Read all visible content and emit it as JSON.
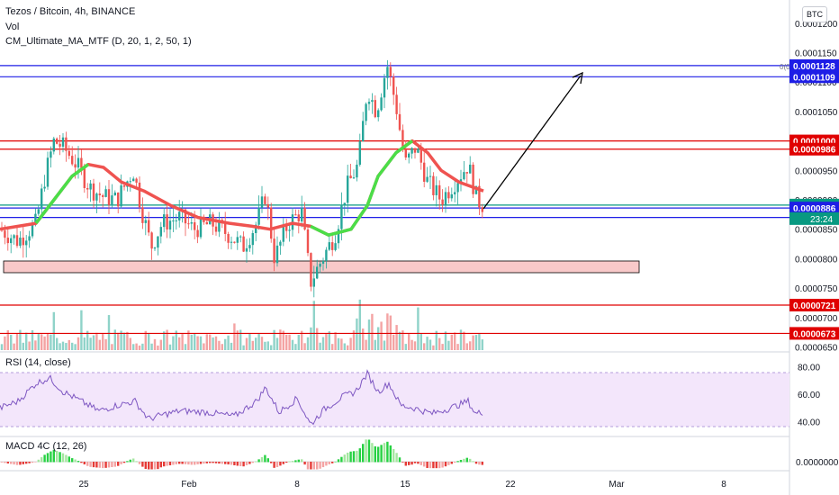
{
  "header": {
    "symbol": "Tezos / Bitcoin, 4h, BINANCE",
    "volume_label": "Vol",
    "ma_indicator": "CM_Ultimate_MA_MTF (D, 20, 1, 2, 50, 1)",
    "currency_button": "BTC"
  },
  "price_axis": {
    "ticks": [
      "0.0001200",
      "0.0001150",
      "0.0001100",
      "0.0001050",
      "0.0001000",
      "0.0000950",
      "0.0000900",
      "0.0000850",
      "0.0000800",
      "0.0000750",
      "0.0000700",
      "0.0000650"
    ],
    "levels": [
      {
        "value": "0.0001128",
        "color": "#1e1ee6",
        "tag": "0(0)"
      },
      {
        "value": "0.0001109",
        "color": "#1e1ee6"
      },
      {
        "value": "0.0001000",
        "color": "#e00000"
      },
      {
        "value": "0.0000986",
        "color": "#e00000"
      },
      {
        "value": "0.0000891",
        "color": "#089981"
      },
      {
        "value": "0.0000886",
        "color": "#1e1ee6"
      },
      {
        "value": "0.0000870",
        "color": "#1e1ee6"
      },
      {
        "value": "0.0000721",
        "color": "#e00000"
      },
      {
        "value": "0.0000673",
        "color": "#e00000"
      }
    ],
    "current_price": "0.0000891",
    "countdown": "23:24"
  },
  "rsi": {
    "label": "RSI (14, close)",
    "ticks": [
      "80.00",
      "60.00",
      "40.00"
    ]
  },
  "macd": {
    "label": "MACD 4C (12, 26)",
    "ticks": [
      "0.0000000"
    ]
  },
  "time_axis": {
    "ticks": [
      "25",
      "Feb",
      "8",
      "15",
      "22",
      "Mar",
      "8"
    ]
  },
  "chart_data": {
    "type": "candlestick",
    "subtitle": "Tezos / Bitcoin, 4h, BINANCE",
    "y_range": [
      6.4e-05,
      0.0001215
    ],
    "x_ticks": [
      "25",
      "Feb",
      "8",
      "15",
      "22",
      "Mar",
      "8"
    ],
    "horizontal_levels": [
      0.0001128,
      0.0001109,
      0.0001,
      9.86e-05,
      8.91e-05,
      8.86e-05,
      8.7e-05,
      7.21e-05,
      6.73e-05
    ],
    "support_zone": [
      7.9e-05,
      7.78e-05
    ],
    "projection_arrow": {
      "from": 8.91e-05,
      "to": 0.000112
    },
    "price_path": [
      {
        "x": 0,
        "y": 8.5e-05
      },
      {
        "x": 20,
        "y": 8.3e-05
      },
      {
        "x": 40,
        "y": 8.6e-05
      },
      {
        "x": 50,
        "y": 9.4e-05
      },
      {
        "x": 60,
        "y": 0.0001
      },
      {
        "x": 70,
        "y": 9.9e-05
      },
      {
        "x": 85,
        "y": 9.6e-05
      },
      {
        "x": 100,
        "y": 9.2e-05
      },
      {
        "x": 115,
        "y": 9.05e-05
      },
      {
        "x": 130,
        "y": 9e-05
      },
      {
        "x": 148,
        "y": 9.5e-05
      },
      {
        "x": 158,
        "y": 8.8e-05
      },
      {
        "x": 168,
        "y": 8.2e-05
      },
      {
        "x": 180,
        "y": 8.6e-05
      },
      {
        "x": 200,
        "y": 8.7e-05
      },
      {
        "x": 215,
        "y": 8.5e-05
      },
      {
        "x": 235,
        "y": 8.6e-05
      },
      {
        "x": 255,
        "y": 8.4e-05
      },
      {
        "x": 270,
        "y": 8.2e-05
      },
      {
        "x": 285,
        "y": 8.6e-05
      },
      {
        "x": 295,
        "y": 9.1e-05
      },
      {
        "x": 305,
        "y": 8e-05
      },
      {
        "x": 320,
        "y": 8.6e-05
      },
      {
        "x": 335,
        "y": 8.8e-05
      },
      {
        "x": 345,
        "y": 7.6e-05
      },
      {
        "x": 358,
        "y": 8e-05
      },
      {
        "x": 372,
        "y": 8.4e-05
      },
      {
        "x": 385,
        "y": 9.2e-05
      },
      {
        "x": 398,
        "y": 9.6e-05
      },
      {
        "x": 408,
        "y": 0.000109
      },
      {
        "x": 418,
        "y": 0.000105
      },
      {
        "x": 430,
        "y": 0.000113
      },
      {
        "x": 440,
        "y": 0.000106
      },
      {
        "x": 450,
        "y": 9.6e-05
      },
      {
        "x": 462,
        "y": 9.9e-05
      },
      {
        "x": 475,
        "y": 9.3e-05
      },
      {
        "x": 490,
        "y": 9e-05
      },
      {
        "x": 505,
        "y": 9.3e-05
      },
      {
        "x": 520,
        "y": 9.6e-05
      },
      {
        "x": 530,
        "y": 9e-05
      },
      {
        "x": 537,
        "y": 8.91e-05
      }
    ],
    "moving_average": [
      {
        "x": 0,
        "y": 8.5e-05
      },
      {
        "x": 40,
        "y": 8.6e-05
      },
      {
        "x": 60,
        "y": 9e-05
      },
      {
        "x": 80,
        "y": 9.4e-05
      },
      {
        "x": 98,
        "y": 9.6e-05
      },
      {
        "x": 115,
        "y": 9.55e-05
      },
      {
        "x": 135,
        "y": 9.3e-05
      },
      {
        "x": 160,
        "y": 9.15e-05
      },
      {
        "x": 190,
        "y": 8.9e-05
      },
      {
        "x": 220,
        "y": 8.7e-05
      },
      {
        "x": 255,
        "y": 8.6e-05
      },
      {
        "x": 280,
        "y": 8.55e-05
      },
      {
        "x": 300,
        "y": 8.5e-05
      },
      {
        "x": 325,
        "y": 8.6e-05
      },
      {
        "x": 345,
        "y": 8.55e-05
      },
      {
        "x": 365,
        "y": 8.4e-05
      },
      {
        "x": 390,
        "y": 8.5e-05
      },
      {
        "x": 408,
        "y": 8.9e-05
      },
      {
        "x": 420,
        "y": 9.4e-05
      },
      {
        "x": 440,
        "y": 9.8e-05
      },
      {
        "x": 458,
        "y": 0.0001
      },
      {
        "x": 475,
        "y": 9.8e-05
      },
      {
        "x": 490,
        "y": 9.5e-05
      },
      {
        "x": 510,
        "y": 9.3e-05
      },
      {
        "x": 537,
        "y": 9.15e-05
      }
    ],
    "rsi_range": [
      30,
      85
    ],
    "rsi_levels": [
      70,
      30
    ],
    "rsi_values": [
      {
        "x": 0,
        "y": 50
      },
      {
        "x": 20,
        "y": 55
      },
      {
        "x": 40,
        "y": 68
      },
      {
        "x": 55,
        "y": 72
      },
      {
        "x": 70,
        "y": 62
      },
      {
        "x": 90,
        "y": 55
      },
      {
        "x": 110,
        "y": 48
      },
      {
        "x": 130,
        "y": 52
      },
      {
        "x": 150,
        "y": 55
      },
      {
        "x": 165,
        "y": 42
      },
      {
        "x": 180,
        "y": 45
      },
      {
        "x": 200,
        "y": 48
      },
      {
        "x": 230,
        "y": 47
      },
      {
        "x": 260,
        "y": 44
      },
      {
        "x": 285,
        "y": 55
      },
      {
        "x": 295,
        "y": 65
      },
      {
        "x": 310,
        "y": 47
      },
      {
        "x": 330,
        "y": 57
      },
      {
        "x": 345,
        "y": 38
      },
      {
        "x": 360,
        "y": 49
      },
      {
        "x": 380,
        "y": 58
      },
      {
        "x": 395,
        "y": 62
      },
      {
        "x": 408,
        "y": 75
      },
      {
        "x": 420,
        "y": 62
      },
      {
        "x": 432,
        "y": 68
      },
      {
        "x": 445,
        "y": 52
      },
      {
        "x": 460,
        "y": 50
      },
      {
        "x": 480,
        "y": 46
      },
      {
        "x": 500,
        "y": 50
      },
      {
        "x": 520,
        "y": 55
      },
      {
        "x": 528,
        "y": 46
      },
      {
        "x": 537,
        "y": 47
      }
    ]
  }
}
